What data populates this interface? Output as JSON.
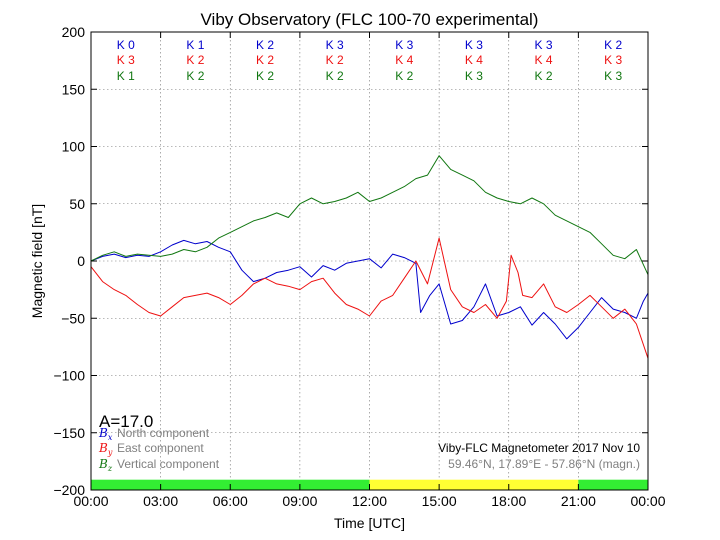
{
  "chart_data": {
    "type": "line",
    "title": "Viby Observatory (FLC 100-70 experimental)",
    "xlabel": "Time [UTC]",
    "ylabel": "Magnetic field [nT]",
    "xlim": [
      0,
      24
    ],
    "ylim": [
      -200,
      200
    ],
    "xticks": [
      0,
      3,
      6,
      9,
      12,
      15,
      18,
      21,
      24
    ],
    "xtick_labels": [
      "00:00",
      "03:00",
      "06:00",
      "09:00",
      "12:00",
      "15:00",
      "18:00",
      "21:00",
      "00:00"
    ],
    "yticks": [
      -200,
      -150,
      -100,
      -50,
      0,
      50,
      100,
      150,
      200
    ],
    "ytick_labels": [
      "−200",
      "−150",
      "−100",
      "−50",
      "0",
      "50",
      "100",
      "150",
      "200"
    ],
    "grid": true,
    "colors": {
      "north": "#0000cc",
      "east": "#ee1111",
      "vertical": "#117711",
      "status_green": "#33ee33",
      "status_yellow": "#ffff33"
    },
    "series": [
      {
        "key": "north",
        "x": [
          0,
          0.5,
          1,
          1.5,
          2,
          2.5,
          3,
          3.5,
          4,
          4.5,
          5,
          5.5,
          6,
          6.5,
          7,
          7.5,
          8,
          8.5,
          9,
          9.5,
          10,
          10.5,
          11,
          11.5,
          12,
          12.5,
          13,
          13.5,
          14,
          14.2,
          14.6,
          15,
          15.5,
          16,
          16.5,
          17,
          17.5,
          18,
          18.5,
          19,
          19.5,
          20,
          20.5,
          21,
          21.5,
          22,
          22.5,
          23,
          23.5,
          23.8,
          24
        ],
        "y": [
          0,
          4,
          6,
          3,
          5,
          4,
          8,
          14,
          18,
          15,
          17,
          12,
          8,
          -8,
          -18,
          -15,
          -10,
          -8,
          -5,
          -14,
          -4,
          -8,
          -2,
          0,
          2,
          -6,
          6,
          3,
          -2,
          -45,
          -30,
          -20,
          -55,
          -52,
          -40,
          -20,
          -48,
          -45,
          -40,
          -56,
          -45,
          -55,
          -68,
          -58,
          -45,
          -32,
          -42,
          -45,
          -50,
          -35,
          -28
        ]
      },
      {
        "key": "east",
        "x": [
          0,
          0.5,
          1,
          1.5,
          2,
          2.5,
          3,
          3.5,
          4,
          4.5,
          5,
          5.5,
          6,
          6.5,
          7,
          7.5,
          8,
          8.5,
          9,
          9.5,
          10,
          10.5,
          11,
          11.5,
          12,
          12.5,
          13,
          13.5,
          14,
          14.5,
          15,
          15.5,
          16,
          16.5,
          17,
          17.5,
          17.9,
          18.1,
          18.4,
          18.6,
          19,
          19.5,
          20,
          20.5,
          21,
          21.5,
          22,
          22.5,
          23,
          23.5,
          24
        ],
        "y": [
          -5,
          -18,
          -25,
          -30,
          -38,
          -45,
          -48,
          -40,
          -32,
          -30,
          -28,
          -32,
          -38,
          -30,
          -20,
          -15,
          -20,
          -22,
          -25,
          -18,
          -15,
          -28,
          -38,
          -42,
          -48,
          -35,
          -30,
          -15,
          0,
          -20,
          20,
          -25,
          -40,
          -45,
          -38,
          -50,
          -35,
          5,
          -10,
          -30,
          -32,
          -20,
          -40,
          -45,
          -38,
          -30,
          -40,
          -50,
          -42,
          -55,
          -85
        ]
      },
      {
        "key": "vertical",
        "x": [
          0,
          0.5,
          1,
          1.5,
          2,
          2.5,
          3,
          3.5,
          4,
          4.5,
          5,
          5.5,
          6,
          6.5,
          7,
          7.5,
          8,
          8.5,
          9,
          9.5,
          10,
          10.5,
          11,
          11.5,
          12,
          12.5,
          13,
          13.5,
          14,
          14.5,
          15,
          15.5,
          16,
          16.5,
          17,
          17.5,
          18,
          18.5,
          19,
          19.5,
          20,
          20.5,
          21,
          21.5,
          22,
          22.5,
          23,
          23.5,
          24
        ],
        "y": [
          0,
          5,
          8,
          4,
          6,
          5,
          4,
          6,
          10,
          8,
          12,
          20,
          25,
          30,
          35,
          38,
          42,
          38,
          50,
          55,
          50,
          52,
          55,
          60,
          52,
          55,
          60,
          65,
          72,
          75,
          92,
          80,
          75,
          70,
          60,
          55,
          52,
          50,
          55,
          50,
          40,
          35,
          30,
          25,
          15,
          5,
          2,
          10,
          -12
        ]
      }
    ],
    "k_indices": {
      "north": [
        "K 0",
        "K 1",
        "K 2",
        "K 3",
        "K 3",
        "K 3",
        "K 3",
        "K 2"
      ],
      "east": [
        "K 3",
        "K 2",
        "K 2",
        "K 2",
        "K 4",
        "K 4",
        "K 4",
        "K 3"
      ],
      "vertical": [
        "K 1",
        "K 2",
        "K 2",
        "K 2",
        "K 2",
        "K 3",
        "K 2",
        "K 3"
      ]
    },
    "status_bar": [
      {
        "from": 0,
        "to": 12,
        "color": "green"
      },
      {
        "from": 12,
        "to": 21,
        "color": "yellow"
      },
      {
        "from": 21,
        "to": 24,
        "color": "green"
      }
    ]
  },
  "annotation": {
    "a_index": "A=17.0"
  },
  "legend": {
    "items": [
      {
        "symbol": "B",
        "sub": "x",
        "label": "North component"
      },
      {
        "symbol": "B",
        "sub": "y",
        "label": "East component"
      },
      {
        "symbol": "B",
        "sub": "z",
        "label": "Vertical component"
      }
    ]
  },
  "info": {
    "line1": "Viby-FLC Magnetometer 2017 Nov 10",
    "line2": "59.46°N, 17.89°E - 57.86°N (magn.)"
  }
}
